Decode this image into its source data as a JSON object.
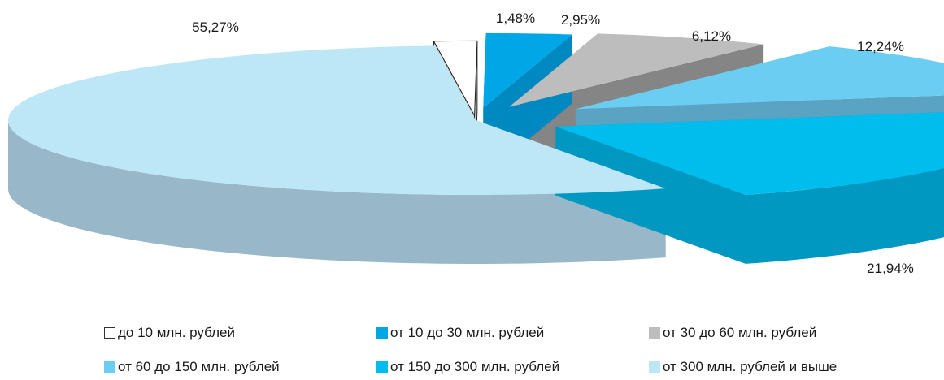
{
  "chart_data": {
    "type": "pie",
    "title": "",
    "categories": [
      "до 10 млн. рублей",
      "от 10 до 30 млн. рублей",
      "от 30 до 60 млн. рублей",
      "от 60 до 150 млн. рублей",
      "от 150 до 300 млн. рублей",
      "от 300 млн. рублей и выше"
    ],
    "values": [
      1.48,
      2.95,
      6.12,
      12.24,
      21.94,
      55.27
    ],
    "labels": [
      "1,48%",
      "2,95%",
      "6,12%",
      "12,24%",
      "21,94%",
      "55,27%"
    ],
    "colors": [
      "#ffffff",
      "#00a6e6",
      "#bdbdbd",
      "#6ccdf2",
      "#00bdee",
      "#bde7f7"
    ],
    "side_colors": [
      "#d8d8d8",
      "#0088c0",
      "#858585",
      "#5aa3c2",
      "#0098c0",
      "#98b7c8"
    ],
    "style": "3d-exploded",
    "legend_position": "bottom",
    "legend": [
      {
        "label": "до 10 млн. рублей",
        "color": "#ffffff"
      },
      {
        "label": "от 10 до 30 млн. рублей",
        "color": "#00a6e6"
      },
      {
        "label": "от 30 до 60 млн. рублей",
        "color": "#bdbdbd"
      },
      {
        "label": "от 60 до 150 млн. рублей",
        "color": "#6ccdf2"
      },
      {
        "label": "от 150 до 300 млн. рублей",
        "color": "#00bdee"
      },
      {
        "label": "от 300 млн. рублей и выше",
        "color": "#bde7f7"
      }
    ]
  }
}
